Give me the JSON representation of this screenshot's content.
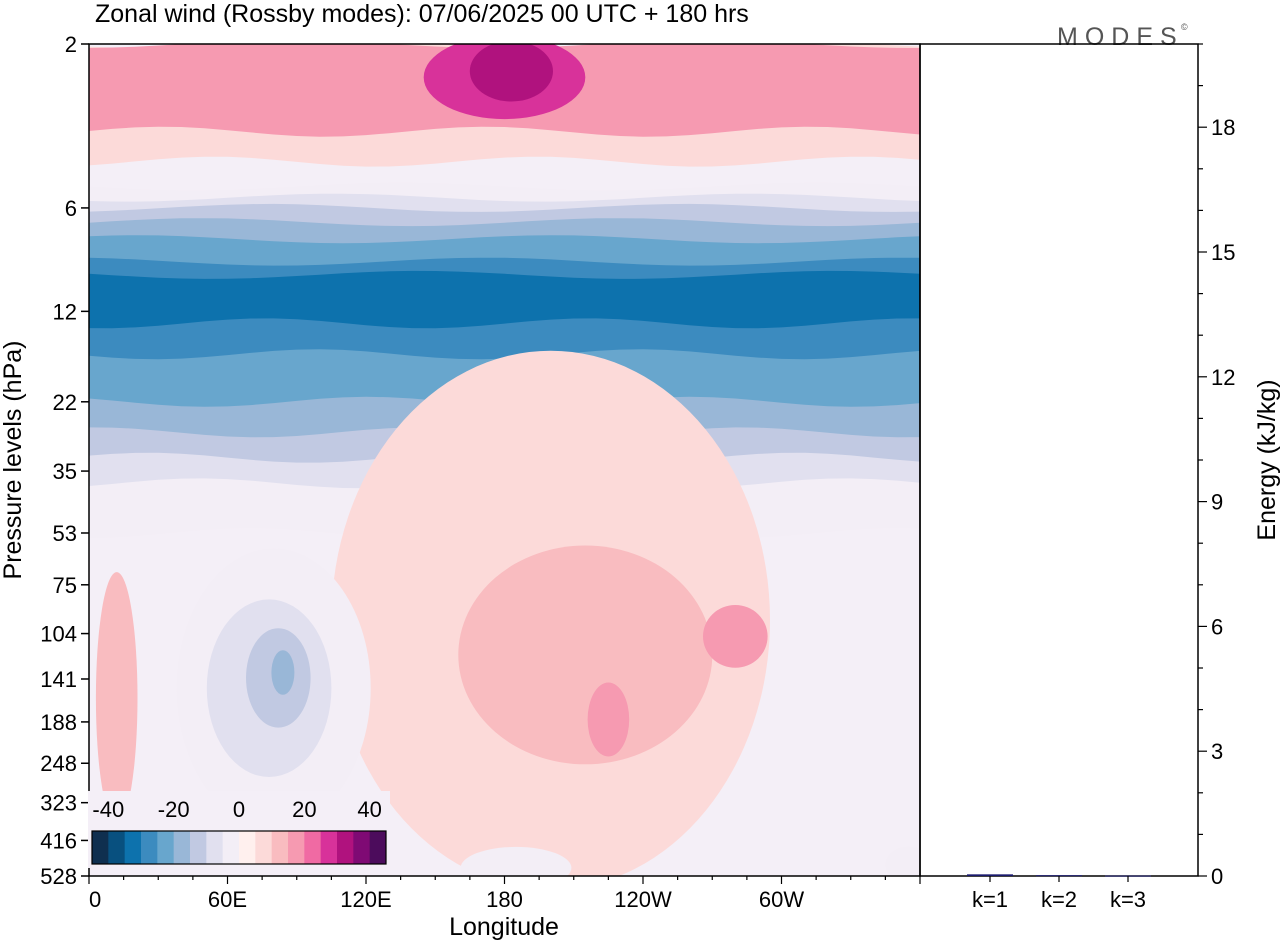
{
  "title": "Zonal wind (Rossby modes):  07/06/2025  00 UTC  + 180 hrs",
  "logo_text": "MODES",
  "logo_mark": "©",
  "chart_data": [
    {
      "type": "heatmap",
      "title": "Zonal wind (Rossby modes):  07/06/2025  00 UTC  + 180 hrs",
      "xlabel": "Longitude",
      "ylabel": "Pressure levels (hPa)",
      "x_ticks": [
        "0",
        "60E",
        "120E",
        "180",
        "120W",
        "60W"
      ],
      "y_ticks": [
        "2",
        "6",
        "12",
        "22",
        "35",
        "53",
        "75",
        "104",
        "141",
        "188",
        "248",
        "323",
        "416",
        "528"
      ],
      "colorbar": {
        "labels": [
          "-40",
          "-20",
          "0",
          "20",
          "40"
        ],
        "range": [
          -45,
          45
        ],
        "step": 5,
        "colors": [
          "#0f2f4f",
          "#08507f",
          "#0d72ad",
          "#3c8bbf",
          "#68a6cd",
          "#99b7d7",
          "#c1c9e2",
          "#e1e0ef",
          "#f3eef6",
          "#fff0ee",
          "#fcdad9",
          "#f9bcc0",
          "#f69ab1",
          "#f06aa3",
          "#d8329a",
          "#b0127e",
          "#7f0a74",
          "#4c0c5c"
        ]
      },
      "bands": [
        {
          "value": -5,
          "p_top": 5.2,
          "p_bot": 53
        },
        {
          "value": -10,
          "p_top": 5.6,
          "p_bot": 38
        },
        {
          "value": -15,
          "p_top": 6.0,
          "p_bot": 32
        },
        {
          "value": -20,
          "p_top": 6.6,
          "p_bot": 27
        },
        {
          "value": -25,
          "p_top": 7.4,
          "p_bot": 22
        },
        {
          "value": -30,
          "p_top": 8.6,
          "p_bot": 16
        },
        {
          "value": -35,
          "p_top": 9.4,
          "p_bot": 13
        },
        {
          "value": 5,
          "p_top": 2.0,
          "p_bot": 4.4
        },
        {
          "value": 15,
          "p_top": 2.0,
          "p_bot": 3.6
        }
      ],
      "blobs": [
        {
          "value": 25,
          "lon": 180,
          "p": 2.5,
          "dlon": 35,
          "dp": 1.0
        },
        {
          "value": 30,
          "lon": 183,
          "p": 2.4,
          "dlon": 18,
          "dp": 0.6
        },
        {
          "value": 5,
          "lon": 200,
          "p": 95,
          "dlon": 95,
          "dp": 90
        },
        {
          "value": 10,
          "lon": 215,
          "p": 120,
          "dlon": 55,
          "dp": 75
        },
        {
          "value": 15,
          "lon": 280,
          "p": 106,
          "dlon": 14,
          "dp": 22
        },
        {
          "value": 15,
          "lon": 225,
          "p": 185,
          "dlon": 9,
          "dp": 45
        },
        {
          "value": 10,
          "lon": 12,
          "p": 160,
          "dlon": 9,
          "dp": 110
        },
        {
          "value": -5,
          "lon": 80,
          "p": 150,
          "dlon": 42,
          "dp": 110
        },
        {
          "value": -10,
          "lon": 78,
          "p": 150,
          "dlon": 27,
          "dp": 80
        },
        {
          "value": -15,
          "lon": 82,
          "p": 140,
          "dlon": 14,
          "dp": 45
        },
        {
          "value": -20,
          "lon": 84,
          "p": 135,
          "dlon": 5,
          "dp": 20
        },
        {
          "value": -5,
          "lon": 185,
          "p": 500,
          "dlon": 24,
          "dp": 70
        },
        {
          "value": -5,
          "lon": 355,
          "p": 490,
          "dlon": 10,
          "dp": 60
        }
      ],
      "energy_axis": {
        "label": "Energy (kJ/kg)",
        "ticks": [
          0,
          3,
          6,
          9,
          12,
          15,
          18
        ],
        "range": [
          0,
          20
        ]
      },
      "energy_bars": [
        {
          "label": "k=1",
          "value": 0.04
        },
        {
          "label": "k=2",
          "value": 0.02
        },
        {
          "label": "k=3",
          "value": 0.01
        }
      ]
    }
  ]
}
